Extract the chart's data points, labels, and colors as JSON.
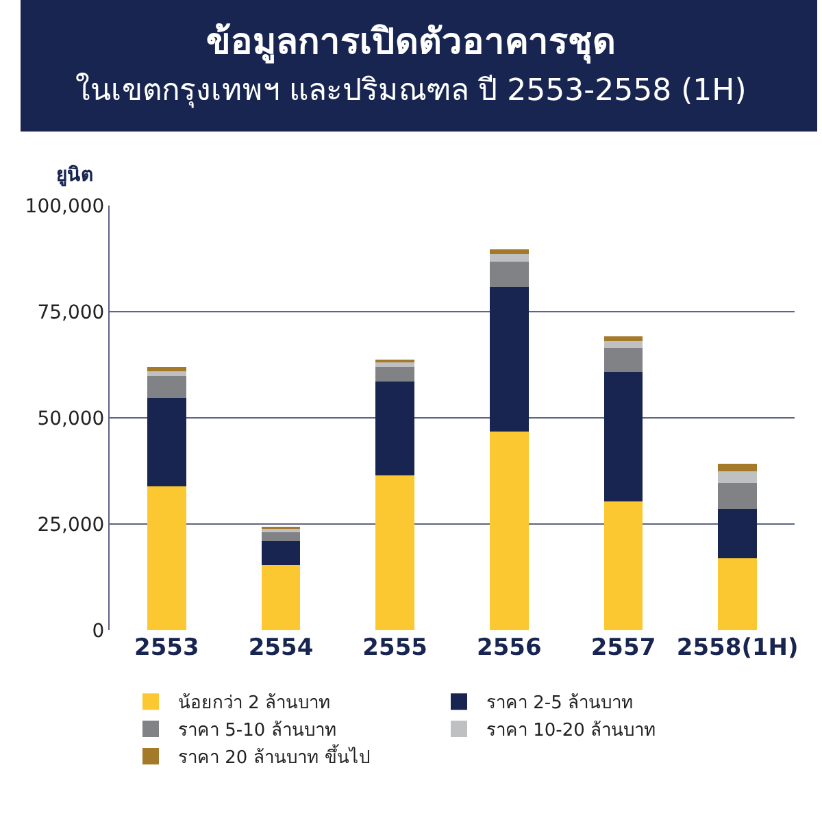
{
  "chart_data": {
    "type": "bar",
    "title": "ข้อมูลการเปิดตัวอาคารชุด",
    "subtitle": "ในเขตกรุงเทพฯ และปริมณฑล ปี 2553-2558 (1H)",
    "ylabel": "ยูนิต",
    "categories": [
      "2553",
      "2554",
      "2555",
      "2556",
      "2557",
      "2558(1H)"
    ],
    "stacked": true,
    "series": [
      {
        "name": "น้อยกว่า 2 ล้านบาท",
        "color": "#fcc831",
        "values": [
          33900,
          15400,
          36400,
          46800,
          30400,
          16900
        ]
      },
      {
        "name": "ราคา 2-5 ล้านบาท",
        "color": "#172550",
        "values": [
          20800,
          5600,
          22100,
          34000,
          30400,
          11700
        ]
      },
      {
        "name": "ราคา 5-10 ล้านบาท",
        "color": "#808285",
        "values": [
          5100,
          2000,
          3400,
          5900,
          5700,
          6100
        ]
      },
      {
        "name": "ราคา 10-20 ล้านบาท",
        "color": "#bfc0c2",
        "values": [
          1100,
          800,
          1100,
          1800,
          1500,
          2800
        ]
      },
      {
        "name": "ราคา 20 ล้านบาท ขึ้นไป",
        "color": "#a5792a",
        "values": [
          1000,
          600,
          700,
          1200,
          1200,
          1700
        ]
      }
    ],
    "ylim": [
      0,
      100000
    ],
    "yticks": [
      {
        "value": 0,
        "label": "0"
      },
      {
        "value": 25000,
        "label": "25,000"
      },
      {
        "value": 50000,
        "label": "50,000"
      },
      {
        "value": 75000,
        "label": "75,000"
      },
      {
        "value": 100000,
        "label": "100,000"
      }
    ],
    "grid": "y",
    "legend": "bottom"
  }
}
